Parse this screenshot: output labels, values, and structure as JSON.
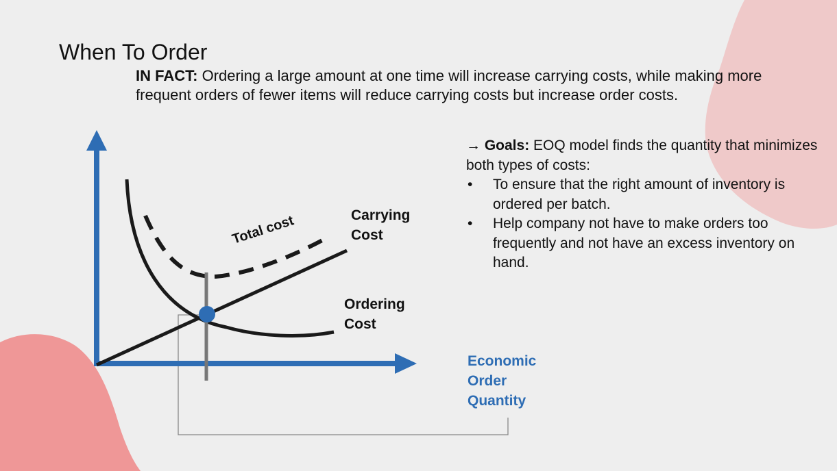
{
  "slide": {
    "title": "When To Order",
    "fact_label": "IN FACT:",
    "fact_text": " Ordering a large amount at one time will increase carrying costs, while making more frequent orders of fewer items will reduce carrying costs but increase order costs."
  },
  "goals": {
    "arrow": "→",
    "label": "Goals:",
    "intro": " EOQ model finds the quantity that minimizes both types of costs:",
    "bullets": [
      "To ensure that the right amount of inventory is ordered per batch.",
      "Help company not have to make orders too frequently and not have an excess inventory on hand."
    ],
    "bullet_char": "•"
  },
  "diagram": {
    "total_cost_label": "Total cost",
    "carrying_cost_label": "Carrying\nCost",
    "ordering_cost_label": "Ordering\nCost",
    "eoq_label": "Economic\nOrder\nQuantity"
  },
  "colors": {
    "axis_blue": "#2e6db4",
    "curve_black": "#1a1a1a",
    "blob_top_right": "#efc9c9",
    "blob_bottom_left": "#ef9797",
    "marker_gray": "#777777"
  }
}
